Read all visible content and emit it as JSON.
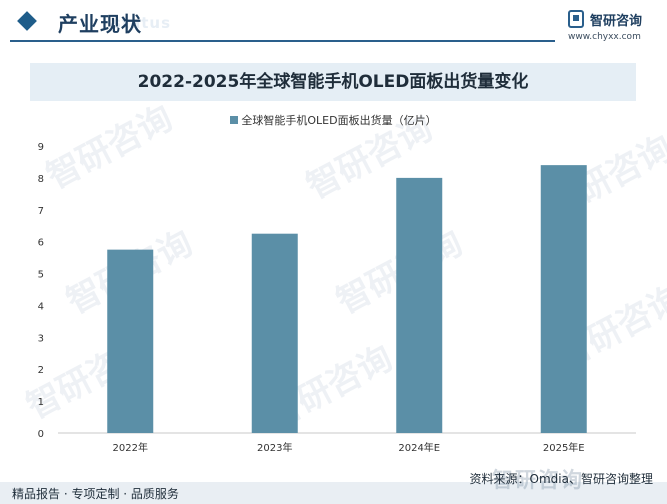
{
  "header": {
    "title": "产业现状",
    "ghost": "status",
    "logo_name": "智研咨询",
    "logo_url": "www.chyxx.com"
  },
  "colors": {
    "bar": "#5b8fa7",
    "accent": "#2a5f8c",
    "title_band": "#e5eef5"
  },
  "chart_data": {
    "type": "bar",
    "title": "2022-2025年全球智能手机OLED面板出货量变化",
    "categories": [
      "2022年",
      "2023年",
      "2024年E",
      "2025年E"
    ],
    "series": [
      {
        "name": "全球智能手机OLED面板出货量（亿片）",
        "values": [
          5.75,
          6.25,
          8.0,
          8.4
        ]
      }
    ],
    "ylim": [
      0,
      9
    ],
    "yticks": [
      0,
      1,
      2,
      3,
      4,
      5,
      6,
      7,
      8,
      9
    ],
    "grid": false,
    "legend_position": "top-center"
  },
  "watermark_text": "智研咨询",
  "footer": {
    "source": "资料来源：Omdia、智研咨询整理",
    "tagline": "精品报告 · 专项定制 · 品质服务",
    "watermark": "智研咨询"
  }
}
